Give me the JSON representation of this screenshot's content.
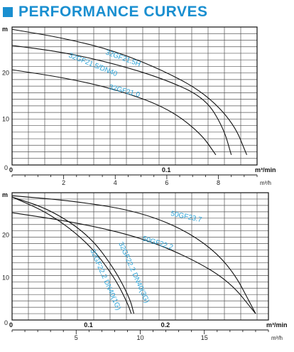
{
  "title": "PERFORMANCE CURVES",
  "colors": {
    "accent": "#1a8fd0",
    "series_label": "#2aa3d8",
    "lines": "#111111",
    "grid": "#555555"
  },
  "chart_data": [
    {
      "type": "line",
      "ylabel": "m",
      "ylim": [
        0,
        30
      ],
      "y_ticks": [
        "0",
        "10",
        "20"
      ],
      "x_unit_primary": "m³/min",
      "x_unit_secondary": "m³/h",
      "xlim_m3h": [
        0,
        9.5
      ],
      "x_ticks_primary": [
        "0",
        "0.1"
      ],
      "x_ticks_secondary": [
        "2",
        "4",
        "6",
        "8"
      ],
      "grid": true,
      "series": [
        {
          "name": "32GF21.5H",
          "x": [
            0,
            2,
            4,
            6,
            7.5,
            8.6,
            9.1
          ],
          "y": [
            29.5,
            27.6,
            24.8,
            20.2,
            15.5,
            9.0,
            2.2
          ]
        },
        {
          "name": "32GF21.5/DN40",
          "x": [
            0,
            2,
            4,
            6,
            7.5,
            8.2,
            8.5
          ],
          "y": [
            26.0,
            24.5,
            22.0,
            18.5,
            14.5,
            8.0,
            2.2
          ]
        },
        {
          "name": "32GF21.0",
          "x": [
            0,
            2,
            4,
            6,
            7.3,
            7.9
          ],
          "y": [
            20.7,
            19.0,
            16.5,
            12.5,
            7.0,
            2.2
          ]
        }
      ]
    },
    {
      "type": "line",
      "ylabel": "m",
      "ylim": [
        0,
        30
      ],
      "y_ticks": [
        "0",
        "10",
        "20"
      ],
      "x_unit_primary": "m³/min",
      "x_unit_secondary": "m³/h",
      "xlim_m3h": [
        0,
        20
      ],
      "x_ticks_primary": [
        "0",
        "0.1",
        "0.2"
      ],
      "x_ticks_secondary": [
        "5",
        "10",
        "15"
      ],
      "grid": true,
      "series": [
        {
          "name": "50GF23.7",
          "x": [
            0,
            5,
            10,
            14,
            17,
            19
          ],
          "y": [
            29.3,
            28.0,
            25.5,
            20.5,
            13.0,
            1.5
          ]
        },
        {
          "name": "50GF22.2",
          "x": [
            0,
            5,
            10,
            14,
            17,
            19
          ],
          "y": [
            25.3,
            23.0,
            19.5,
            14.5,
            9.0,
            1.5
          ]
        },
        {
          "name": "32GF22.2 DN40(1G)",
          "x": [
            0,
            3,
            6,
            8,
            9,
            9.3
          ],
          "y": [
            29.0,
            25.0,
            18.0,
            10.0,
            4.0,
            1.5
          ]
        },
        {
          "name": "32GF22.2 DN40(3G)",
          "x": [
            0,
            3,
            6,
            8,
            9.2,
            9.5
          ],
          "y": [
            29.0,
            26.0,
            20.0,
            12.0,
            5.0,
            1.5
          ]
        }
      ]
    }
  ]
}
